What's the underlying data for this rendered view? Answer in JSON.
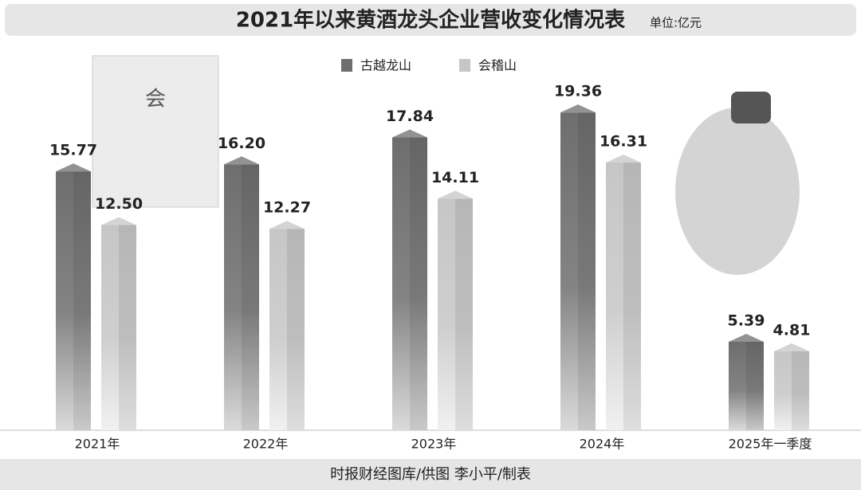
{
  "chart_data": {
    "type": "bar",
    "title": "2021年以来黄酒龙头企业营收变化情况表",
    "subtitle": "单位:亿元",
    "source": "时报财经图库/供图 李小平/制表",
    "categories": [
      "2021年",
      "2022年",
      "2023年",
      "2024年",
      "2025年一季度"
    ],
    "series": [
      {
        "name": "古越龙山",
        "color": "#6e6e6e",
        "values": [
          15.77,
          16.2,
          17.84,
          19.36,
          5.39
        ],
        "value_labels": [
          "15.77",
          "16.20",
          "17.84",
          "19.36",
          "5.39"
        ]
      },
      {
        "name": "会稽山",
        "color": "#c6c6c6",
        "values": [
          12.5,
          12.27,
          14.11,
          16.31,
          4.81
        ],
        "value_labels": [
          "12.50",
          "12.27",
          "14.11",
          "16.31",
          "4.81"
        ]
      }
    ]
  }
}
